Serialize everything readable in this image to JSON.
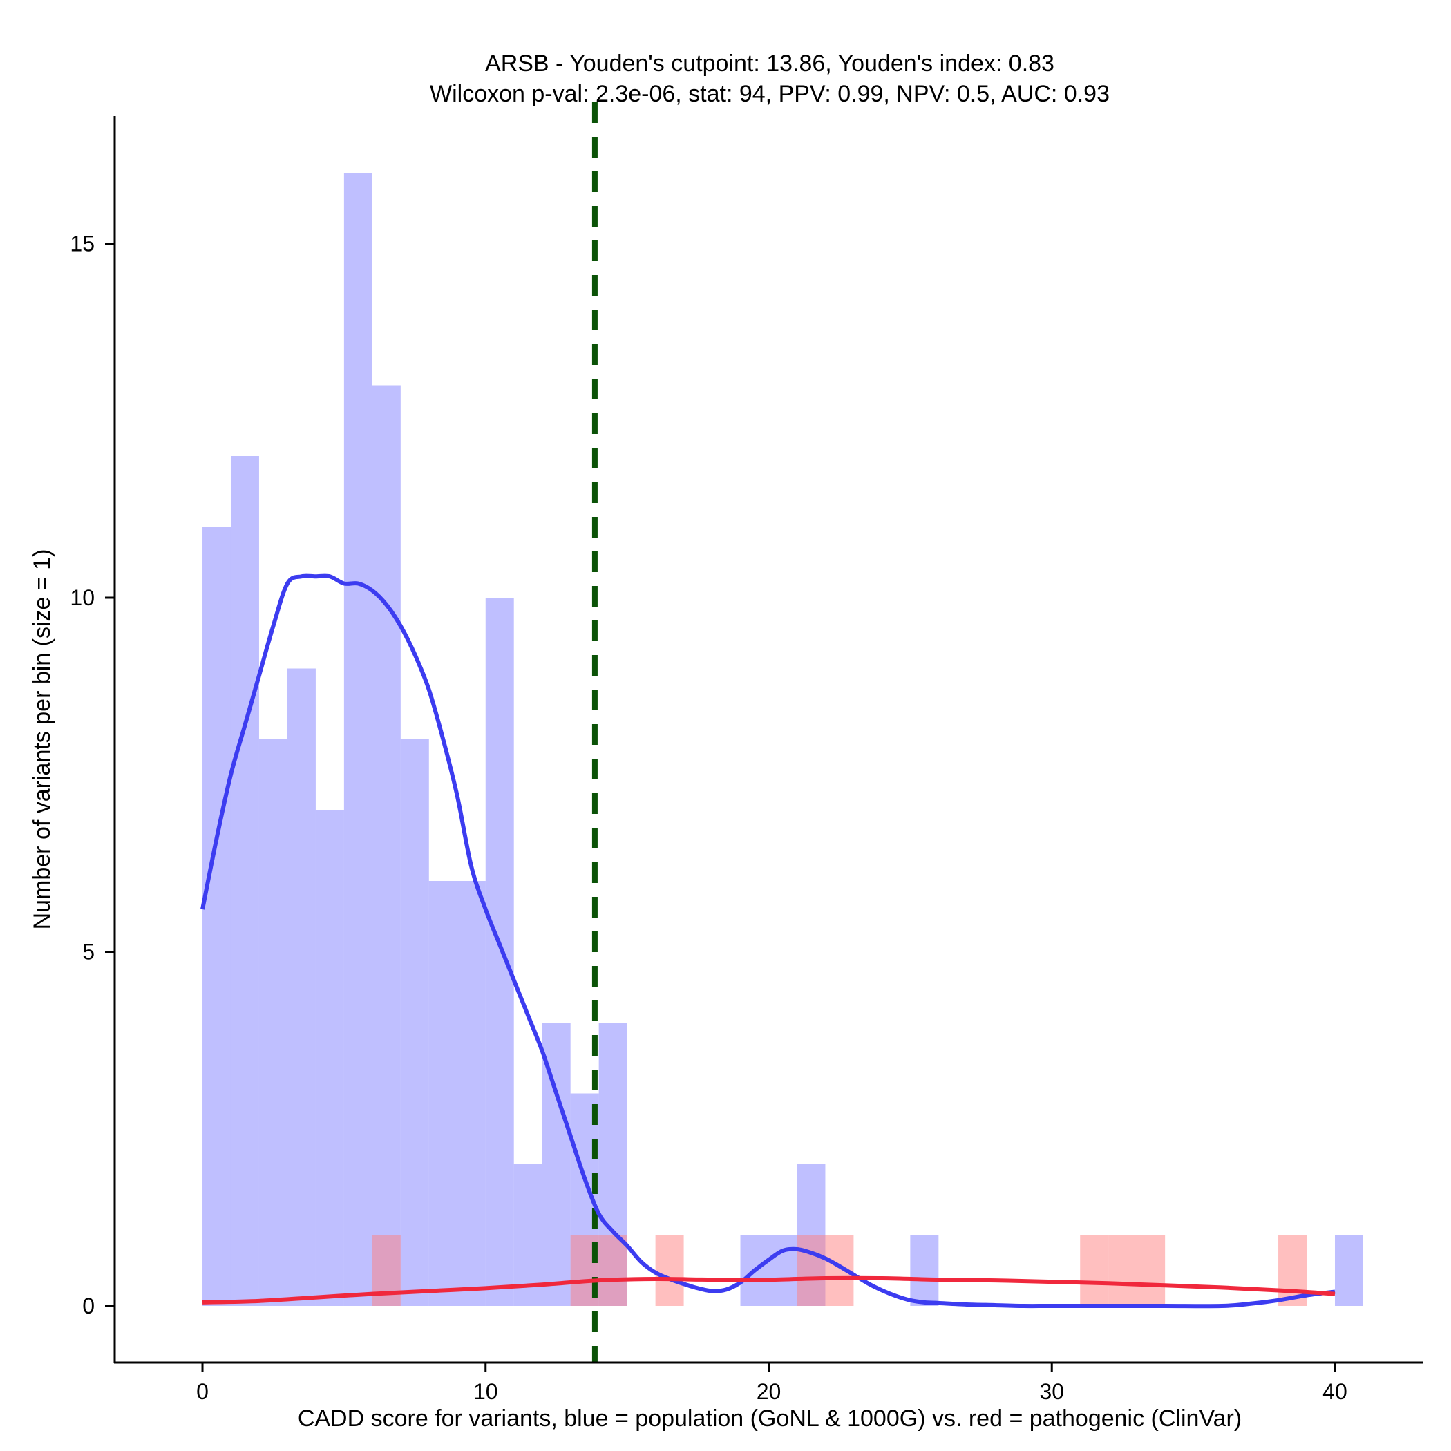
{
  "chart_data": {
    "type": "bar",
    "title_line1": "ARSB - Youden's cutpoint: 13.86, Youden's index: 0.83",
    "title_line2": "Wilcoxon p-val: 2.3e-06, stat: 94, PPV: 0.99, NPV: 0.5, AUC: 0.93",
    "xlabel": "CADD score for variants, blue = population (GoNL & 1000G) vs. red = pathogenic (ClinVar)",
    "ylabel": "Number of variants per bin (size = 1)",
    "xlim": [
      -3.1,
      43.1
    ],
    "ylim": [
      -0.8,
      16.8
    ],
    "x_ticks": [
      0,
      10,
      20,
      30,
      40
    ],
    "y_ticks": [
      0,
      5,
      10,
      15
    ],
    "cutpoint": 13.86,
    "bin_width": 1,
    "colors": {
      "population": "#8080ff",
      "pathogenic": "#ff8080",
      "population_density": "#3c3cf0",
      "pathogenic_density": "#f0283c",
      "cutpoint_line": "#0b5207"
    },
    "series": [
      {
        "name": "population",
        "bins": [
          {
            "x": 0,
            "count": 11
          },
          {
            "x": 1,
            "count": 12
          },
          {
            "x": 2,
            "count": 8
          },
          {
            "x": 3,
            "count": 9
          },
          {
            "x": 4,
            "count": 7
          },
          {
            "x": 5,
            "count": 16
          },
          {
            "x": 6,
            "count": 13
          },
          {
            "x": 7,
            "count": 8
          },
          {
            "x": 8,
            "count": 6
          },
          {
            "x": 9,
            "count": 6
          },
          {
            "x": 10,
            "count": 10
          },
          {
            "x": 11,
            "count": 2
          },
          {
            "x": 12,
            "count": 4
          },
          {
            "x": 13,
            "count": 3
          },
          {
            "x": 14,
            "count": 4
          },
          {
            "x": 19,
            "count": 1
          },
          {
            "x": 20,
            "count": 1
          },
          {
            "x": 21,
            "count": 2
          },
          {
            "x": 25,
            "count": 1
          },
          {
            "x": 40,
            "count": 1
          }
        ]
      },
      {
        "name": "pathogenic",
        "bins": [
          {
            "x": 6,
            "count": 1
          },
          {
            "x": 13,
            "count": 1
          },
          {
            "x": 14,
            "count": 1
          },
          {
            "x": 16,
            "count": 1
          },
          {
            "x": 21,
            "count": 1
          },
          {
            "x": 22,
            "count": 1
          },
          {
            "x": 31,
            "count": 1
          },
          {
            "x": 32,
            "count": 1
          },
          {
            "x": 33,
            "count": 1
          },
          {
            "x": 38,
            "count": 1
          }
        ]
      }
    ],
    "density_population": [
      [
        0,
        5.6
      ],
      [
        0.5,
        6.6
      ],
      [
        1,
        7.5
      ],
      [
        1.5,
        8.2
      ],
      [
        2,
        8.9
      ],
      [
        2.5,
        9.6
      ],
      [
        3,
        10.2
      ],
      [
        3.5,
        10.3
      ],
      [
        4,
        10.3
      ],
      [
        4.5,
        10.3
      ],
      [
        5,
        10.2
      ],
      [
        5.5,
        10.2
      ],
      [
        6,
        10.1
      ],
      [
        6.5,
        9.9
      ],
      [
        7,
        9.6
      ],
      [
        7.5,
        9.2
      ],
      [
        8,
        8.7
      ],
      [
        8.5,
        8.0
      ],
      [
        9,
        7.2
      ],
      [
        9.5,
        6.2
      ],
      [
        10,
        5.6
      ],
      [
        10.5,
        5.1
      ],
      [
        11,
        4.6
      ],
      [
        11.5,
        4.1
      ],
      [
        12,
        3.6
      ],
      [
        12.5,
        3.0
      ],
      [
        13,
        2.4
      ],
      [
        13.5,
        1.8
      ],
      [
        14,
        1.3
      ],
      [
        14.5,
        1.05
      ],
      [
        15,
        0.85
      ],
      [
        15.5,
        0.62
      ],
      [
        16,
        0.47
      ],
      [
        16.5,
        0.38
      ],
      [
        17,
        0.31
      ],
      [
        17.5,
        0.25
      ],
      [
        18,
        0.21
      ],
      [
        18.5,
        0.23
      ],
      [
        19,
        0.33
      ],
      [
        19.5,
        0.5
      ],
      [
        20,
        0.65
      ],
      [
        20.5,
        0.78
      ],
      [
        21,
        0.8
      ],
      [
        21.5,
        0.75
      ],
      [
        22,
        0.67
      ],
      [
        22.5,
        0.56
      ],
      [
        23,
        0.44
      ],
      [
        23.5,
        0.32
      ],
      [
        24,
        0.22
      ],
      [
        24.5,
        0.14
      ],
      [
        25,
        0.08
      ],
      [
        25.5,
        0.05
      ],
      [
        26,
        0.04
      ],
      [
        27,
        0.02
      ],
      [
        28,
        0.01
      ],
      [
        29,
        0.0
      ],
      [
        30,
        0.0
      ],
      [
        32,
        0.0
      ],
      [
        34,
        0.0
      ],
      [
        36,
        0.0
      ],
      [
        37,
        0.03
      ],
      [
        38,
        0.08
      ],
      [
        39,
        0.15
      ],
      [
        40,
        0.2
      ]
    ],
    "density_pathogenic": [
      [
        0,
        0.05
      ],
      [
        2,
        0.07
      ],
      [
        4,
        0.12
      ],
      [
        6,
        0.17
      ],
      [
        8,
        0.21
      ],
      [
        10,
        0.25
      ],
      [
        12,
        0.3
      ],
      [
        14,
        0.36
      ],
      [
        16,
        0.38
      ],
      [
        18,
        0.37
      ],
      [
        20,
        0.37
      ],
      [
        22,
        0.39
      ],
      [
        24,
        0.39
      ],
      [
        26,
        0.37
      ],
      [
        28,
        0.36
      ],
      [
        30,
        0.34
      ],
      [
        32,
        0.32
      ],
      [
        34,
        0.29
      ],
      [
        36,
        0.26
      ],
      [
        38,
        0.22
      ],
      [
        40,
        0.17
      ]
    ]
  }
}
